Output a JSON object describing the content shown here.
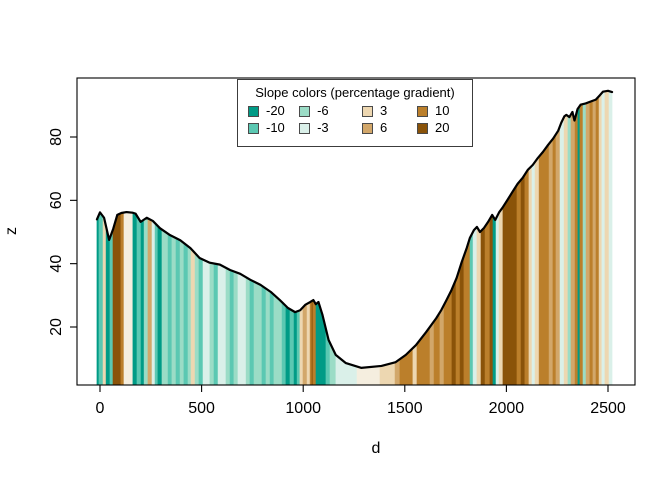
{
  "figure": {
    "background": "#ffffff"
  },
  "chart_data": {
    "type": "area",
    "title": "",
    "xlabel": "d",
    "ylabel": "z",
    "x_ticks": [
      0,
      500,
      1000,
      1500,
      2000,
      2500
    ],
    "y_ticks": [
      20,
      40,
      60,
      80
    ],
    "xlim": [
      -113,
      2623
    ],
    "ylim": [
      1.7,
      99.6
    ],
    "grid": false,
    "legend": {
      "title": "Slope colors (percentage gradient)",
      "position": "top-center",
      "columns": [
        [
          {
            "label": "-20",
            "class": "-20"
          },
          {
            "label": "-10",
            "class": "-10"
          }
        ],
        [
          {
            "label": "-6",
            "class": "-6"
          },
          {
            "label": "-3",
            "class": "-3"
          }
        ],
        [
          {
            "label": "3",
            "class": "3"
          },
          {
            "label": "6",
            "class": "6"
          }
        ],
        [
          {
            "label": "10",
            "class": "10"
          },
          {
            "label": "20",
            "class": "20"
          }
        ]
      ]
    },
    "palette": {
      "-20": "#009B86",
      "-10": "#5BC8B2",
      "-6": "#9BDCC6",
      "-3": "#DAF0E9",
      "flat": "#F5EEDF",
      "3": "#EDD7B1",
      "6": "#D2A76A",
      "10": "#BB7F2B",
      "20": "#8A5309"
    },
    "line_color": "#000000",
    "profile": [
      [
        -15,
        54
      ],
      [
        0,
        56.2
      ],
      [
        20,
        54.5
      ],
      [
        45,
        47.5
      ],
      [
        65,
        51
      ],
      [
        85,
        55.4
      ],
      [
        105,
        56
      ],
      [
        130,
        56.3
      ],
      [
        160,
        56.1
      ],
      [
        175,
        55.8
      ],
      [
        200,
        53.2
      ],
      [
        230,
        54.5
      ],
      [
        260,
        53.5
      ],
      [
        295,
        51.2
      ],
      [
        345,
        49
      ],
      [
        395,
        47.4
      ],
      [
        445,
        44.9
      ],
      [
        490,
        41.8
      ],
      [
        540,
        40.3
      ],
      [
        590,
        39.7
      ],
      [
        640,
        38
      ],
      [
        690,
        36.8
      ],
      [
        740,
        34.9
      ],
      [
        790,
        33.3
      ],
      [
        840,
        31.1
      ],
      [
        885,
        28.5
      ],
      [
        925,
        26
      ],
      [
        960,
        24.7
      ],
      [
        985,
        25.3
      ],
      [
        1010,
        27
      ],
      [
        1035,
        27.9
      ],
      [
        1050,
        28.5
      ],
      [
        1062,
        27.2
      ],
      [
        1075,
        27.9
      ],
      [
        1095,
        23.8
      ],
      [
        1125,
        15.9
      ],
      [
        1160,
        11.2
      ],
      [
        1210,
        8.6
      ],
      [
        1285,
        7.1
      ],
      [
        1385,
        7.7
      ],
      [
        1455,
        8.9
      ],
      [
        1505,
        11.2
      ],
      [
        1555,
        14.3
      ],
      [
        1605,
        18.4
      ],
      [
        1655,
        22.8
      ],
      [
        1680,
        25.4
      ],
      [
        1705,
        28.5
      ],
      [
        1730,
        31.7
      ],
      [
        1755,
        35.5
      ],
      [
        1780,
        40.5
      ],
      [
        1805,
        45
      ],
      [
        1820,
        48.1
      ],
      [
        1840,
        50.6
      ],
      [
        1855,
        51.6
      ],
      [
        1870,
        50
      ],
      [
        1890,
        51.3
      ],
      [
        1910,
        53.2
      ],
      [
        1930,
        55.4
      ],
      [
        1945,
        53.8
      ],
      [
        1965,
        56.3
      ],
      [
        1980,
        57.6
      ],
      [
        2005,
        60.1
      ],
      [
        2030,
        62.7
      ],
      [
        2055,
        65.2
      ],
      [
        2080,
        67.1
      ],
      [
        2105,
        69.6
      ],
      [
        2130,
        71.2
      ],
      [
        2155,
        73.4
      ],
      [
        2180,
        75.3
      ],
      [
        2205,
        77.5
      ],
      [
        2230,
        79.5
      ],
      [
        2255,
        82
      ],
      [
        2270,
        84.5
      ],
      [
        2285,
        86.5
      ],
      [
        2295,
        87
      ],
      [
        2310,
        86.3
      ],
      [
        2325,
        87.9
      ],
      [
        2335,
        85.2
      ],
      [
        2350,
        88.8
      ],
      [
        2365,
        90.2
      ],
      [
        2390,
        90.6
      ],
      [
        2415,
        91.2
      ],
      [
        2440,
        91.8
      ],
      [
        2460,
        93.2
      ],
      [
        2475,
        94.3
      ],
      [
        2500,
        94.6
      ],
      [
        2520,
        94.2
      ]
    ],
    "bars": [
      [
        -15,
        -5,
        "-20"
      ],
      [
        -5,
        15,
        "-10"
      ],
      [
        15,
        30,
        "3"
      ],
      [
        30,
        49,
        "-20"
      ],
      [
        49,
        64,
        "-10"
      ],
      [
        64,
        103,
        "20"
      ],
      [
        103,
        118,
        "10"
      ],
      [
        118,
        162,
        "flat"
      ],
      [
        162,
        182,
        "-20"
      ],
      [
        182,
        202,
        "-10"
      ],
      [
        202,
        217,
        "-20"
      ],
      [
        217,
        236,
        "-6"
      ],
      [
        236,
        256,
        "6"
      ],
      [
        256,
        271,
        "-3"
      ],
      [
        271,
        285,
        "-10"
      ],
      [
        285,
        305,
        "-20"
      ],
      [
        305,
        335,
        "-6"
      ],
      [
        335,
        354,
        "-10"
      ],
      [
        354,
        374,
        "-6"
      ],
      [
        374,
        394,
        "-10"
      ],
      [
        394,
        413,
        "-6"
      ],
      [
        413,
        433,
        "-10"
      ],
      [
        433,
        448,
        "-6"
      ],
      [
        448,
        468,
        "3"
      ],
      [
        468,
        487,
        "-6"
      ],
      [
        487,
        507,
        "-10"
      ],
      [
        507,
        541,
        "-3"
      ],
      [
        541,
        561,
        "-6"
      ],
      [
        561,
        581,
        "-10"
      ],
      [
        581,
        620,
        "-3"
      ],
      [
        620,
        640,
        "-6"
      ],
      [
        640,
        659,
        "-10"
      ],
      [
        659,
        679,
        "-6"
      ],
      [
        679,
        719,
        "-3"
      ],
      [
        719,
        738,
        "-6"
      ],
      [
        738,
        758,
        "-10"
      ],
      [
        758,
        797,
        "-6"
      ],
      [
        797,
        817,
        "-10"
      ],
      [
        817,
        837,
        "-6"
      ],
      [
        837,
        856,
        "-10"
      ],
      [
        856,
        896,
        "-6"
      ],
      [
        896,
        915,
        "-10"
      ],
      [
        915,
        935,
        "-20"
      ],
      [
        935,
        955,
        "-10"
      ],
      [
        955,
        970,
        "-20"
      ],
      [
        970,
        984,
        "-10"
      ],
      [
        984,
        999,
        "3"
      ],
      [
        999,
        1019,
        "6"
      ],
      [
        1019,
        1034,
        "3"
      ],
      [
        1034,
        1043,
        "10"
      ],
      [
        1043,
        1048,
        "20"
      ],
      [
        1048,
        1063,
        "10"
      ],
      [
        1063,
        1112,
        "-20"
      ],
      [
        1112,
        1132,
        "-10"
      ],
      [
        1132,
        1161,
        "-6"
      ],
      [
        1161,
        1265,
        "-3"
      ],
      [
        1265,
        1378,
        "flat"
      ],
      [
        1378,
        1452,
        "3"
      ],
      [
        1452,
        1476,
        "6"
      ],
      [
        1476,
        1540,
        "10"
      ],
      [
        1540,
        1560,
        "3"
      ],
      [
        1560,
        1624,
        "10"
      ],
      [
        1624,
        1644,
        "6"
      ],
      [
        1644,
        1673,
        "10"
      ],
      [
        1673,
        1693,
        "6"
      ],
      [
        1693,
        1732,
        "10"
      ],
      [
        1732,
        1752,
        "20"
      ],
      [
        1752,
        1772,
        "10"
      ],
      [
        1772,
        1791,
        "20"
      ],
      [
        1791,
        1821,
        "10"
      ],
      [
        1821,
        1836,
        "-10"
      ],
      [
        1836,
        1855,
        "-3"
      ],
      [
        1855,
        1875,
        "3"
      ],
      [
        1875,
        1895,
        "20"
      ],
      [
        1895,
        1919,
        "10"
      ],
      [
        1919,
        1934,
        "20"
      ],
      [
        1934,
        1949,
        "-20"
      ],
      [
        1949,
        1964,
        "-3"
      ],
      [
        1964,
        1983,
        "3"
      ],
      [
        1983,
        2052,
        "20"
      ],
      [
        2052,
        2072,
        "10"
      ],
      [
        2072,
        2091,
        "20"
      ],
      [
        2091,
        2111,
        "10"
      ],
      [
        2111,
        2126,
        "3"
      ],
      [
        2126,
        2141,
        "-3"
      ],
      [
        2141,
        2161,
        "3"
      ],
      [
        2161,
        2210,
        "10"
      ],
      [
        2210,
        2229,
        "6"
      ],
      [
        2229,
        2244,
        "10"
      ],
      [
        2244,
        2264,
        "6"
      ],
      [
        2264,
        2284,
        "-3"
      ],
      [
        2284,
        2303,
        "3"
      ],
      [
        2303,
        2318,
        "-6"
      ],
      [
        2318,
        2338,
        "6"
      ],
      [
        2338,
        2352,
        "10"
      ],
      [
        2352,
        2362,
        "-20"
      ],
      [
        2362,
        2377,
        "10"
      ],
      [
        2377,
        2392,
        "-6"
      ],
      [
        2392,
        2411,
        "6"
      ],
      [
        2411,
        2426,
        "10"
      ],
      [
        2426,
        2441,
        "6"
      ],
      [
        2441,
        2456,
        "10"
      ],
      [
        2456,
        2470,
        "3"
      ],
      [
        2470,
        2485,
        "-3"
      ],
      [
        2485,
        2505,
        "3"
      ],
      [
        2505,
        2520,
        "-3"
      ]
    ]
  }
}
